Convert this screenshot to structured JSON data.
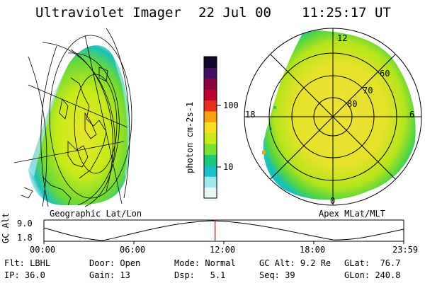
{
  "header": {
    "title": "Ultraviolet Imager",
    "date": "22 Jul 00",
    "time": "11:25:17 UT"
  },
  "colorbar": {
    "unit_label": "photon cm-2s-1",
    "ticks": [
      "100",
      "10"
    ],
    "colors": [
      "#e8f6f6",
      "#9ee8ee",
      "#19c0c8",
      "#19c878",
      "#78e232",
      "#c8ea18",
      "#f8e020",
      "#f8a010",
      "#e83020",
      "#c0002c",
      "#8c0040",
      "#401060",
      "#10082a"
    ]
  },
  "geo_panel": {
    "caption": "Geographic Lat/Lon"
  },
  "polar_panel": {
    "caption": "Apex MLat/MLT",
    "mlt_labels": {
      "top": "12",
      "left": "18",
      "right": "6",
      "bottom": "0"
    },
    "lat_labels": [
      "60",
      "70",
      "80"
    ]
  },
  "altitude_plot": {
    "ylabel": "GC Alt",
    "yticks": [
      "9.0",
      "1.8"
    ],
    "xticks": [
      "00:00",
      "06:00",
      "12:00",
      "18:00",
      "23:59"
    ],
    "marker_time_hours": 11.42,
    "marker_color": "#d01010"
  },
  "status": {
    "filter": {
      "label": "Flt:",
      "value": "LBHL"
    },
    "ip": {
      "label": "IP:",
      "value": "36.0"
    },
    "door": {
      "label": "Door:",
      "value": "Open"
    },
    "gain": {
      "label": "Gain:",
      "value": "13"
    },
    "mode": {
      "label": "Mode:",
      "value": "Normal"
    },
    "dsp": {
      "label": "Dsp:",
      "value": "5.1"
    },
    "gc_alt": {
      "label": "GC Alt:",
      "value": "9.2 Re"
    },
    "seq": {
      "label": "Seq:",
      "value": "39"
    },
    "glat": {
      "label": "GLat:",
      "value": "76.7"
    },
    "glon": {
      "label": "GLon:",
      "value": "240.8"
    }
  }
}
